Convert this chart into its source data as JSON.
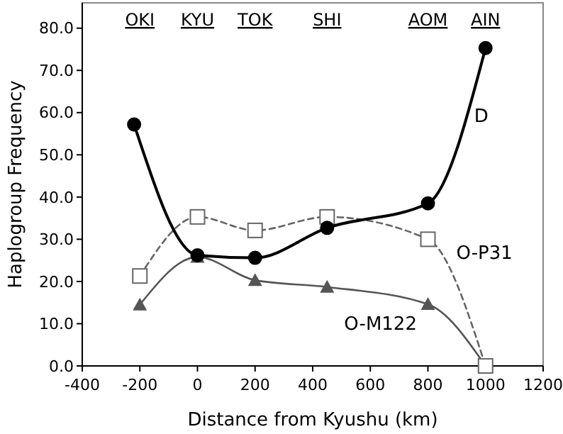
{
  "chart_data": {
    "type": "line",
    "xlabel": "Distance from Kyushu (km)",
    "ylabel": "Haplogroup Frequency",
    "xlim": [
      -400,
      1200
    ],
    "xticks": [
      -400,
      -200,
      0,
      200,
      400,
      600,
      800,
      1000,
      1200
    ],
    "ylim": [
      0,
      86
    ],
    "yticks": [
      {
        "value": 0,
        "label": "0.0"
      },
      {
        "value": 10,
        "label": "10.0"
      },
      {
        "value": 20,
        "label": "20.0"
      },
      {
        "value": 30,
        "label": "30.0"
      },
      {
        "value": 40,
        "label": "40.0"
      },
      {
        "value": 50,
        "label": "50.0"
      },
      {
        "value": 60,
        "label": "60.0"
      },
      {
        "value": 70,
        "label": "70.0"
      },
      {
        "value": 80,
        "label": "80.0"
      }
    ],
    "annotations": [
      "OKI",
      "KYU",
      "TOK",
      "SHI",
      "AOM",
      "AIN"
    ],
    "grid": false,
    "series": [
      {
        "name": "D",
        "color": "#000000",
        "marker": "circle",
        "line_style": "solid",
        "x": [
          -220,
          0,
          200,
          450,
          800,
          1000
        ],
        "values": [
          57.2,
          26.2,
          25.6,
          32.7,
          38.5,
          75.3
        ]
      },
      {
        "name": "O-P31",
        "color": "#666666",
        "marker": "square",
        "line_style": "dashed",
        "x": [
          -200,
          0,
          200,
          450,
          800,
          1000
        ],
        "values": [
          21.3,
          35.3,
          32.1,
          35.3,
          30.0,
          0
        ]
      },
      {
        "name": "O-M122",
        "color": "#555555",
        "marker": "triangle",
        "line_style": "solid",
        "x": [
          -200,
          0,
          200,
          450,
          800,
          1000
        ],
        "values": [
          14.5,
          25.8,
          20.3,
          18.7,
          14.6,
          0
        ]
      }
    ]
  }
}
